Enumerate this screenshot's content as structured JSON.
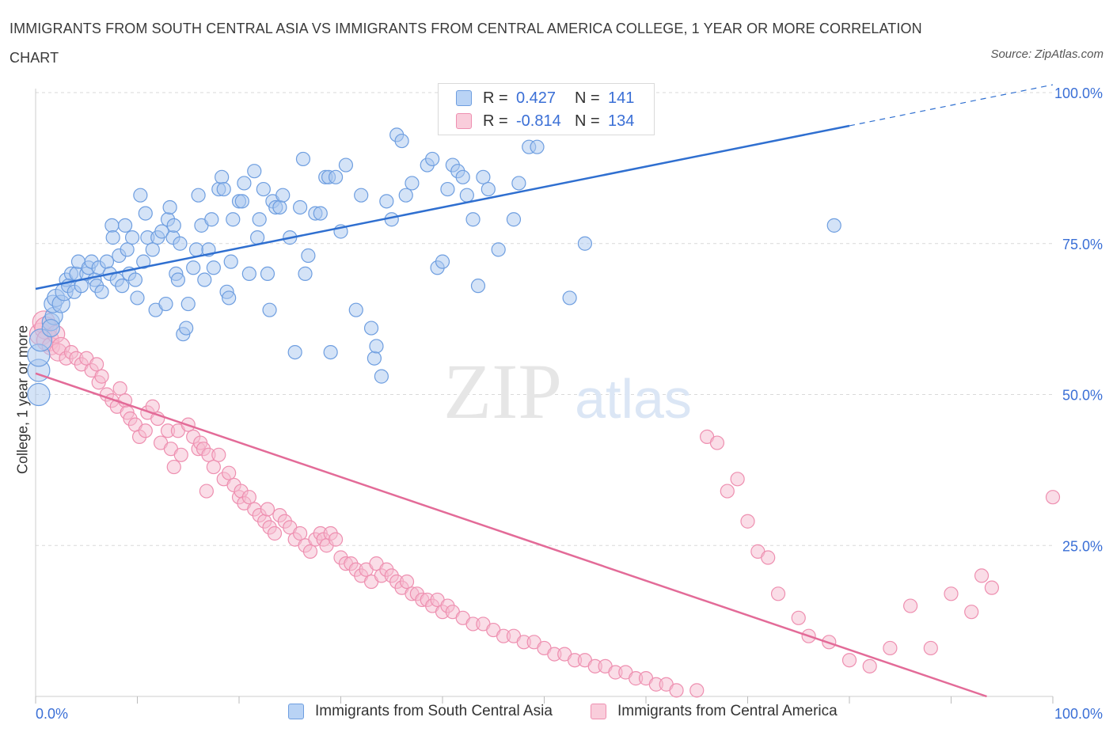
{
  "title": "IMMIGRANTS FROM SOUTH CENTRAL ASIA VS IMMIGRANTS FROM CENTRAL AMERICA COLLEGE, 1 YEAR OR MORE CORRELATION CHART",
  "source": "Source: ZipAtlas.com",
  "watermark": {
    "zip": "ZIP",
    "atlas": "atlas"
  },
  "colors": {
    "blue_fill": "#aac8f0",
    "blue_stroke": "#6e9ee0",
    "blue_line": "#2f6fd0",
    "pink_fill": "#f6bcd0",
    "pink_stroke": "#ee8fb0",
    "pink_line": "#e36b98",
    "tick_label": "#3a6fd6",
    "grid": "#d9d9d9"
  },
  "legend": {
    "rows": [
      {
        "r_label": "R =",
        "r_value": "0.427",
        "n_label": "N =",
        "n_value": "141"
      },
      {
        "r_label": "R =",
        "r_value": "-0.814",
        "n_label": "N =",
        "n_value": "134"
      }
    ]
  },
  "chart_data": {
    "type": "scatter",
    "title": "IMMIGRANTS FROM SOUTH CENTRAL ASIA VS IMMIGRANTS FROM CENTRAL AMERICA COLLEGE, 1 YEAR OR MORE CORRELATION CHART",
    "xlabel": "",
    "ylabel": "College, 1 year or more",
    "xlim": [
      0,
      100
    ],
    "ylim": [
      0,
      100
    ],
    "x_tick_labels": [
      "0.0%",
      "100.0%"
    ],
    "y_tick_labels": [
      "25.0%",
      "50.0%",
      "75.0%",
      "100.0%"
    ],
    "y_ticks": [
      25,
      50,
      75,
      100
    ],
    "grid": true,
    "legend_position": "top-center and bottom",
    "series": [
      {
        "name": "Immigrants from South Central Asia",
        "color": "#6e9ee0",
        "r": 0.427,
        "n": 141,
        "trend": {
          "x": [
            0,
            80,
            100
          ],
          "y": [
            67.5,
            94.5,
            101.3
          ],
          "solid_until_x": 80
        },
        "points": [
          [
            0.3,
            50
          ],
          [
            0.3,
            54
          ],
          [
            0.3,
            56.5
          ],
          [
            0.5,
            59
          ],
          [
            1.5,
            62
          ],
          [
            1.8,
            63
          ],
          [
            1.7,
            65
          ],
          [
            2,
            66
          ],
          [
            1.5,
            61
          ],
          [
            2.5,
            65
          ],
          [
            2.8,
            67
          ],
          [
            3,
            69
          ],
          [
            3.5,
            70
          ],
          [
            3.2,
            68
          ],
          [
            3.8,
            67
          ],
          [
            4,
            70
          ],
          [
            4.2,
            72
          ],
          [
            4.5,
            68
          ],
          [
            5,
            70
          ],
          [
            5.2,
            71
          ],
          [
            5.5,
            72
          ],
          [
            5.8,
            69
          ],
          [
            6,
            68
          ],
          [
            6.5,
            67
          ],
          [
            6.2,
            71
          ],
          [
            7,
            72
          ],
          [
            7.3,
            70
          ],
          [
            7.5,
            78
          ],
          [
            7.6,
            76
          ],
          [
            8,
            69
          ],
          [
            8.2,
            73
          ],
          [
            8.5,
            68
          ],
          [
            8.8,
            78
          ],
          [
            9,
            74
          ],
          [
            9.2,
            70
          ],
          [
            9.5,
            76
          ],
          [
            9.8,
            69
          ],
          [
            10,
            66
          ],
          [
            10.3,
            83
          ],
          [
            10.6,
            72
          ],
          [
            10.8,
            80
          ],
          [
            11,
            76
          ],
          [
            11.5,
            74
          ],
          [
            11.8,
            64
          ],
          [
            12,
            76
          ],
          [
            12.4,
            77
          ],
          [
            12.8,
            65
          ],
          [
            13,
            79
          ],
          [
            13.2,
            81
          ],
          [
            13.5,
            76
          ],
          [
            13.6,
            78
          ],
          [
            13.8,
            70
          ],
          [
            14,
            69
          ],
          [
            14.2,
            75
          ],
          [
            14.5,
            60
          ],
          [
            14.8,
            61
          ],
          [
            15,
            65
          ],
          [
            15.5,
            71
          ],
          [
            15.8,
            74
          ],
          [
            16,
            83
          ],
          [
            16.3,
            78
          ],
          [
            16.6,
            69
          ],
          [
            17,
            74
          ],
          [
            17.3,
            79
          ],
          [
            17.5,
            71
          ],
          [
            18,
            84
          ],
          [
            18.3,
            86
          ],
          [
            18.5,
            84
          ],
          [
            18.8,
            67
          ],
          [
            19,
            66
          ],
          [
            19.2,
            72
          ],
          [
            19.4,
            79
          ],
          [
            20,
            82
          ],
          [
            20.3,
            82
          ],
          [
            20.5,
            85
          ],
          [
            21,
            70
          ],
          [
            21.5,
            87
          ],
          [
            21.8,
            76
          ],
          [
            22,
            79
          ],
          [
            22.4,
            84
          ],
          [
            22.8,
            70
          ],
          [
            23,
            64
          ],
          [
            23.3,
            82
          ],
          [
            23.6,
            81
          ],
          [
            24,
            81
          ],
          [
            24.3,
            83
          ],
          [
            25,
            76
          ],
          [
            25.5,
            57
          ],
          [
            26,
            81
          ],
          [
            26.3,
            89
          ],
          [
            26.5,
            70
          ],
          [
            26.8,
            73
          ],
          [
            27.5,
            80
          ],
          [
            28,
            80
          ],
          [
            28.5,
            86
          ],
          [
            28.8,
            86
          ],
          [
            29,
            57
          ],
          [
            29.5,
            86
          ],
          [
            30,
            77
          ],
          [
            30.5,
            88
          ],
          [
            31.5,
            64
          ],
          [
            32,
            83
          ],
          [
            33,
            61
          ],
          [
            33.3,
            56
          ],
          [
            33.5,
            58
          ],
          [
            34,
            53
          ],
          [
            34.5,
            82
          ],
          [
            35,
            79
          ],
          [
            35.5,
            93
          ],
          [
            36,
            92
          ],
          [
            36.4,
            83
          ],
          [
            37,
            85
          ],
          [
            38.5,
            88
          ],
          [
            39,
            89
          ],
          [
            39.5,
            71
          ],
          [
            40,
            72
          ],
          [
            40.5,
            84
          ],
          [
            41,
            88
          ],
          [
            41.5,
            87
          ],
          [
            42,
            86
          ],
          [
            42.4,
            83
          ],
          [
            43,
            79
          ],
          [
            43.5,
            68
          ],
          [
            44,
            86
          ],
          [
            44.5,
            84
          ],
          [
            45.5,
            74
          ],
          [
            47,
            79
          ],
          [
            47.5,
            85
          ],
          [
            48.5,
            91
          ],
          [
            49.3,
            91
          ],
          [
            52.5,
            66
          ],
          [
            54,
            75
          ],
          [
            78.5,
            78
          ]
        ]
      },
      {
        "name": "Immigrants from Central America",
        "color": "#ee8fb0",
        "r": -0.814,
        "n": 134,
        "trend": {
          "x": [
            0,
            93.5
          ],
          "y": [
            53.5,
            0
          ]
        },
        "points": [
          [
            0.5,
            60
          ],
          [
            0.8,
            62
          ],
          [
            1,
            61
          ],
          [
            1.2,
            59
          ],
          [
            1.5,
            58
          ],
          [
            2,
            60
          ],
          [
            2.2,
            57
          ],
          [
            2.5,
            58
          ],
          [
            3,
            56
          ],
          [
            3.5,
            57
          ],
          [
            4,
            56
          ],
          [
            4.5,
            55
          ],
          [
            5,
            56
          ],
          [
            5.5,
            54
          ],
          [
            6,
            55
          ],
          [
            6.2,
            52
          ],
          [
            6.5,
            53
          ],
          [
            7,
            50
          ],
          [
            7.5,
            49
          ],
          [
            8,
            48
          ],
          [
            8.3,
            51
          ],
          [
            8.8,
            49
          ],
          [
            9,
            47
          ],
          [
            9.3,
            46
          ],
          [
            9.8,
            45
          ],
          [
            10.2,
            43
          ],
          [
            10.8,
            44
          ],
          [
            11,
            47
          ],
          [
            11.5,
            48
          ],
          [
            12,
            46
          ],
          [
            12.3,
            42
          ],
          [
            13,
            44
          ],
          [
            13.3,
            41
          ],
          [
            13.6,
            38
          ],
          [
            14,
            44
          ],
          [
            14.3,
            40
          ],
          [
            15,
            45
          ],
          [
            15.5,
            43
          ],
          [
            16,
            41
          ],
          [
            16.2,
            42
          ],
          [
            16.5,
            41
          ],
          [
            16.8,
            34
          ],
          [
            17,
            40
          ],
          [
            17.5,
            38
          ],
          [
            18,
            40
          ],
          [
            18.5,
            36
          ],
          [
            19,
            37
          ],
          [
            19.5,
            35
          ],
          [
            20,
            33
          ],
          [
            20.2,
            34
          ],
          [
            20.5,
            32
          ],
          [
            21,
            33
          ],
          [
            21.5,
            31
          ],
          [
            22,
            30
          ],
          [
            22.5,
            29
          ],
          [
            22.8,
            31
          ],
          [
            23,
            28
          ],
          [
            23.5,
            27
          ],
          [
            24,
            30
          ],
          [
            24.5,
            29
          ],
          [
            25,
            28
          ],
          [
            25.5,
            26
          ],
          [
            26,
            27
          ],
          [
            26.5,
            25
          ],
          [
            27,
            24
          ],
          [
            27.5,
            26
          ],
          [
            28,
            27
          ],
          [
            28.3,
            26
          ],
          [
            28.6,
            25
          ],
          [
            29,
            27
          ],
          [
            29.5,
            26
          ],
          [
            30,
            23
          ],
          [
            30.5,
            22
          ],
          [
            31,
            22
          ],
          [
            31.5,
            21
          ],
          [
            32,
            20
          ],
          [
            32.5,
            21
          ],
          [
            33,
            19
          ],
          [
            33.5,
            22
          ],
          [
            34,
            20
          ],
          [
            34.5,
            21
          ],
          [
            35,
            20
          ],
          [
            35.5,
            19
          ],
          [
            36,
            18
          ],
          [
            36.5,
            19
          ],
          [
            37,
            17
          ],
          [
            37.5,
            17
          ],
          [
            38,
            16
          ],
          [
            38.5,
            16
          ],
          [
            39,
            15
          ],
          [
            39.5,
            16
          ],
          [
            40,
            14
          ],
          [
            40.5,
            15
          ],
          [
            41,
            14
          ],
          [
            42,
            13
          ],
          [
            43,
            12
          ],
          [
            44,
            12
          ],
          [
            45,
            11
          ],
          [
            46,
            10
          ],
          [
            47,
            10
          ],
          [
            48,
            9
          ],
          [
            49,
            9
          ],
          [
            50,
            8
          ],
          [
            51,
            7
          ],
          [
            52,
            7
          ],
          [
            53,
            6
          ],
          [
            54,
            6
          ],
          [
            55,
            5
          ],
          [
            56,
            5
          ],
          [
            57,
            4
          ],
          [
            58,
            4
          ],
          [
            59,
            3
          ],
          [
            60,
            3
          ],
          [
            61,
            2
          ],
          [
            62,
            2
          ],
          [
            63,
            1
          ],
          [
            65,
            1
          ],
          [
            66,
            43
          ],
          [
            67,
            42
          ],
          [
            68,
            34
          ],
          [
            69,
            36
          ],
          [
            70,
            29
          ],
          [
            71,
            24
          ],
          [
            72,
            23
          ],
          [
            73,
            17
          ],
          [
            75,
            13
          ],
          [
            76,
            10
          ],
          [
            78,
            9
          ],
          [
            80,
            6
          ],
          [
            82,
            5
          ],
          [
            84,
            8
          ],
          [
            86,
            15
          ],
          [
            88,
            8
          ],
          [
            90,
            17
          ],
          [
            92,
            14
          ],
          [
            93,
            20
          ],
          [
            94,
            18
          ],
          [
            100,
            33
          ]
        ]
      }
    ]
  }
}
